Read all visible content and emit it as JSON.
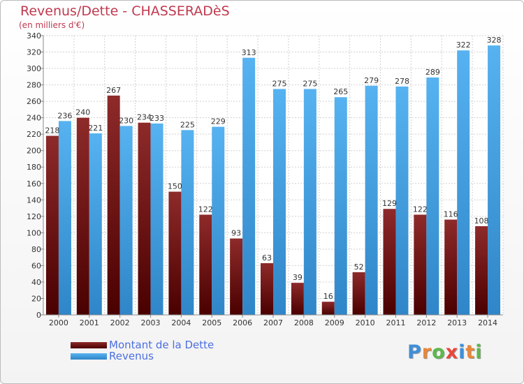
{
  "title": "Revenus/Dette - CHASSERADèS",
  "subtitle": "(en milliers d'€)",
  "logo_text": "Proxiti",
  "chart_data": {
    "type": "bar",
    "categories": [
      "2000",
      "2001",
      "2002",
      "2003",
      "2004",
      "2005",
      "2006",
      "2007",
      "2008",
      "2009",
      "2010",
      "2011",
      "2012",
      "2013",
      "2014"
    ],
    "series": [
      {
        "name": "Montant de la Dette",
        "values": [
          218,
          240,
          267,
          234,
          150,
          122,
          93,
          63,
          39,
          16,
          52,
          129,
          122,
          116,
          108
        ],
        "color": "#7b1a1a"
      },
      {
        "name": "Revenus",
        "values": [
          236,
          221,
          230,
          233,
          225,
          229,
          313,
          275,
          275,
          265,
          279,
          278,
          289,
          322,
          328
        ],
        "color": "#3f9fe2"
      }
    ],
    "ylim": [
      0,
      340
    ],
    "ytick_step": 20,
    "grid": true,
    "legend_position": "bottom-left"
  },
  "legend": [
    {
      "label": "Montant de la Dette",
      "color": "#7b1a1a"
    },
    {
      "label": "Revenus",
      "color": "#3f9fe2"
    }
  ]
}
